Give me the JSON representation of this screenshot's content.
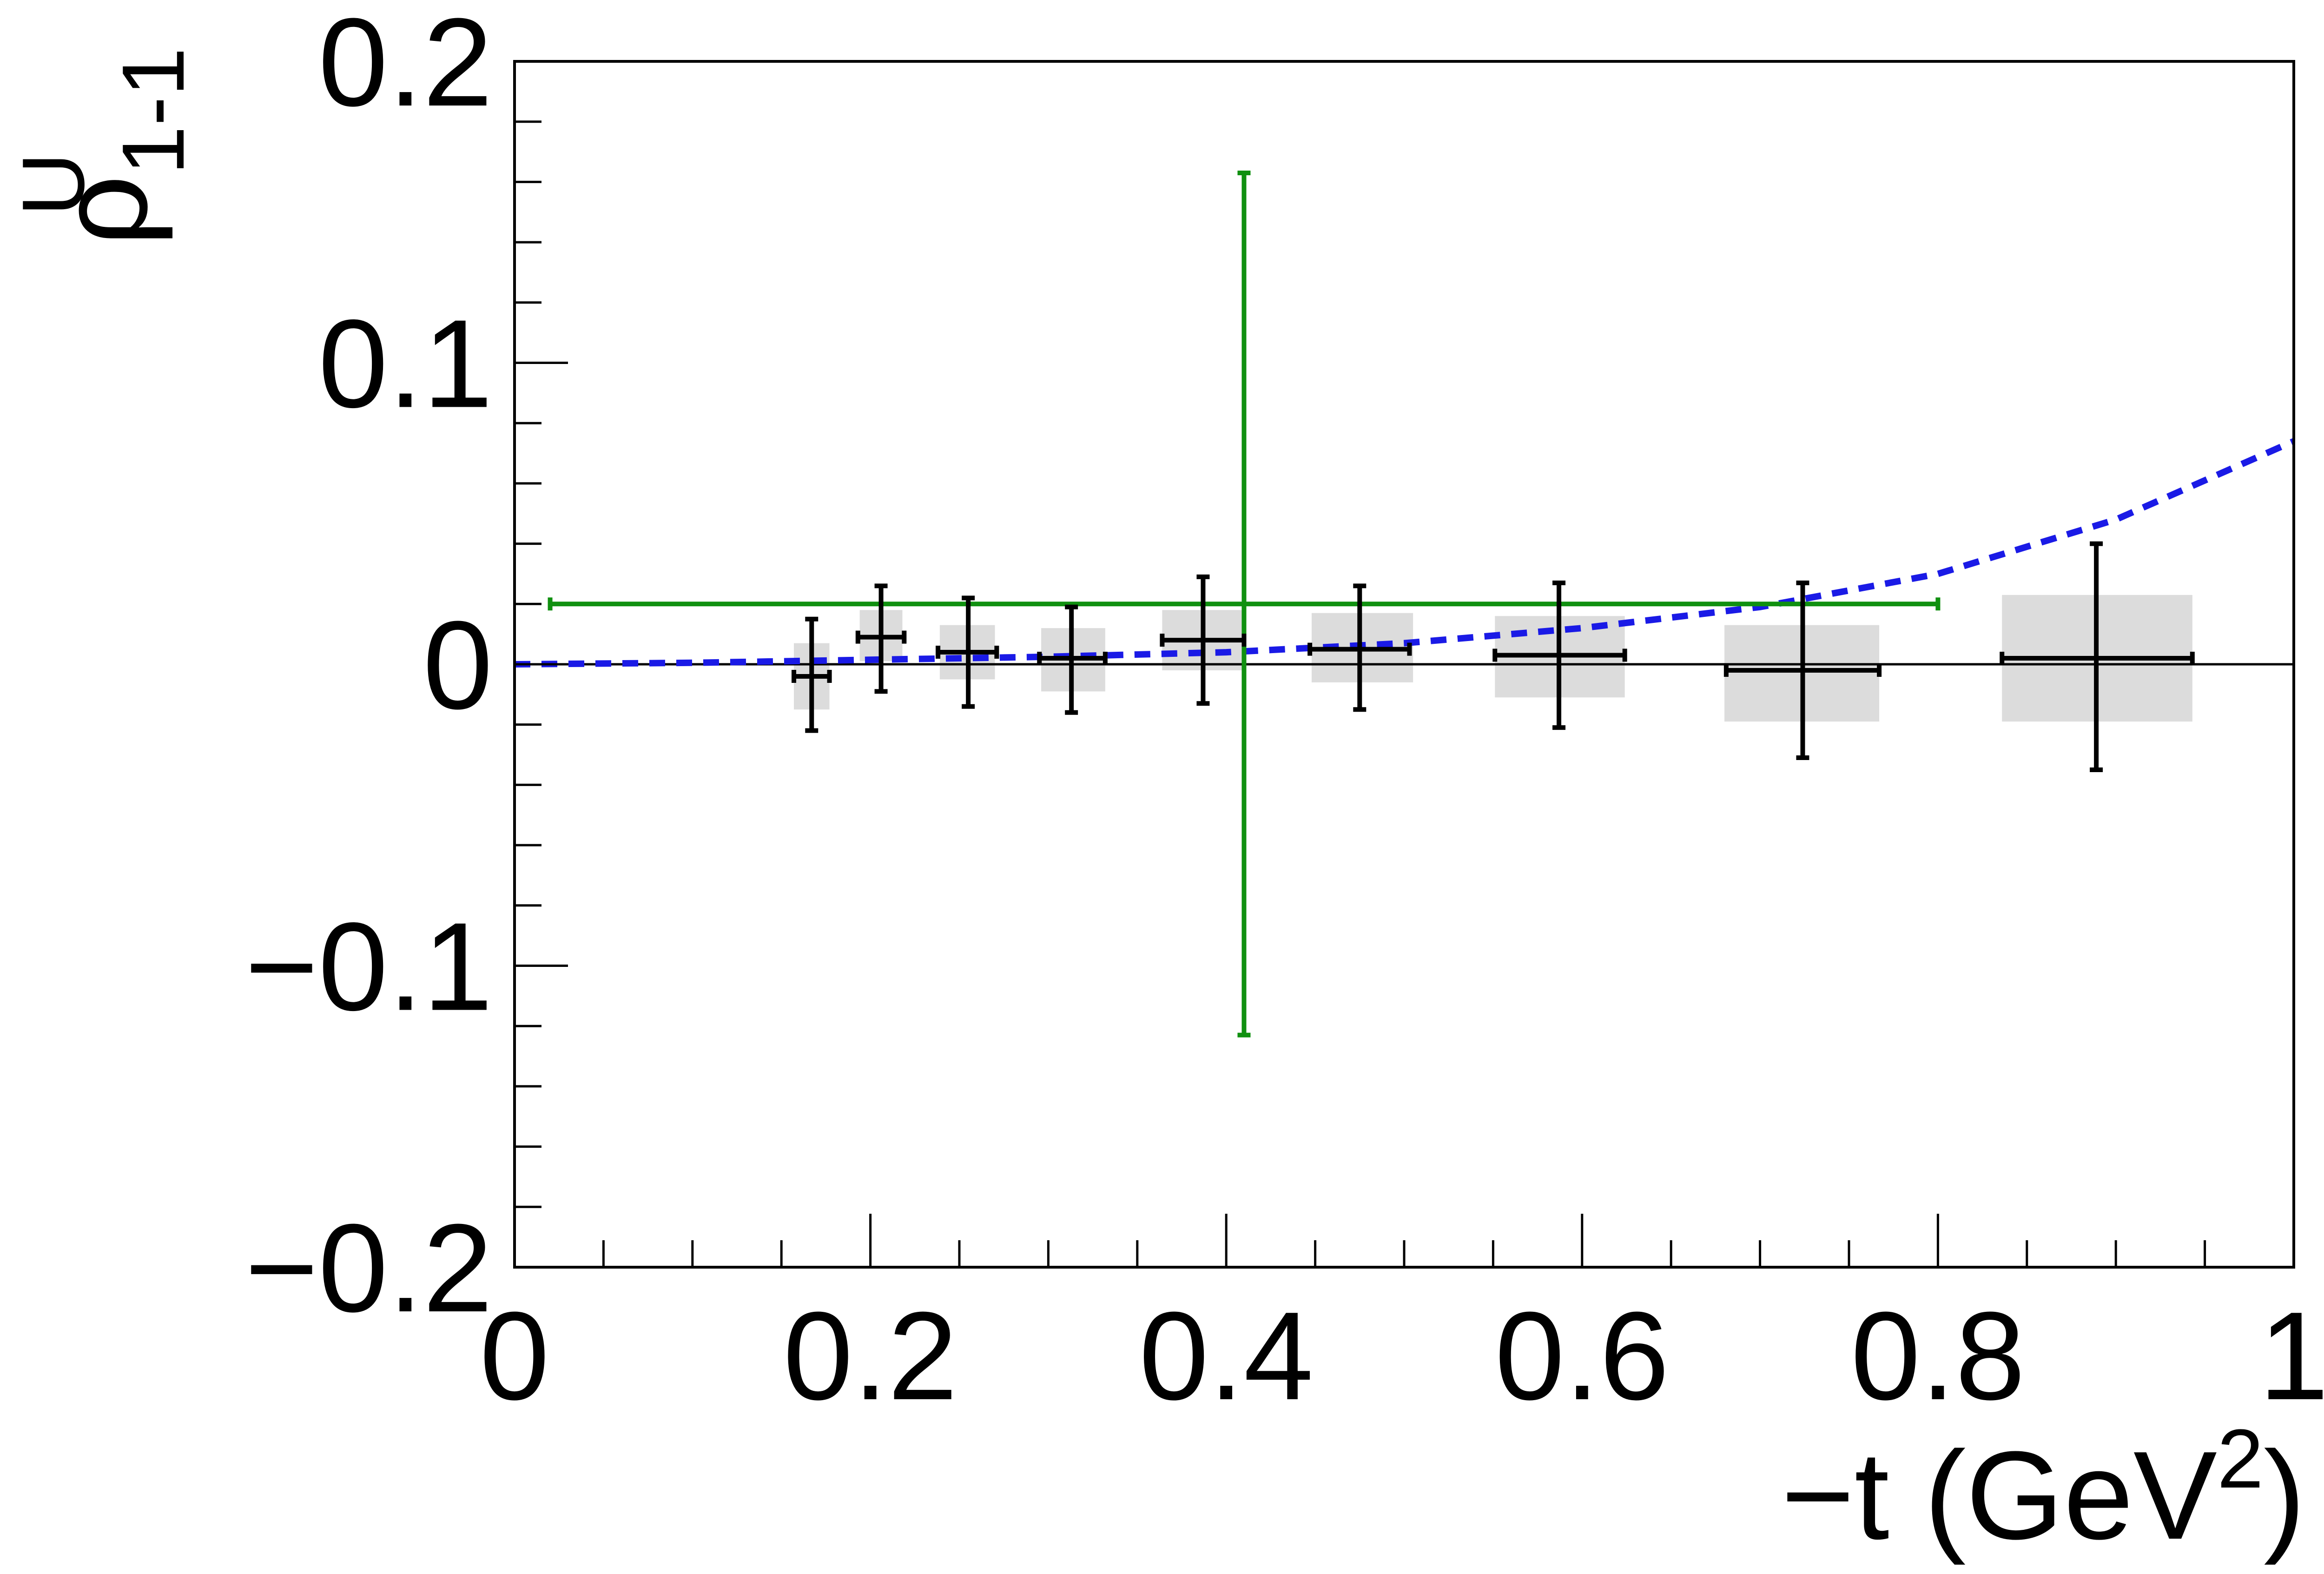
{
  "chart_data": {
    "type": "scatter",
    "xlabel": "−t (GeV",
    "xlabel_sup": "2",
    "xlabel_close": ")",
    "ylabel": "ρ",
    "ylabel_sup": "U",
    "ylabel_sub": "1-1",
    "xlim": [
      0,
      1
    ],
    "ylim": [
      -0.2,
      0.2
    ],
    "x_ticks": [
      {
        "v": 0,
        "label": "0"
      },
      {
        "v": 0.2,
        "label": "0.2"
      },
      {
        "v": 0.4,
        "label": "0.4"
      },
      {
        "v": 0.6,
        "label": "0.6"
      },
      {
        "v": 0.8,
        "label": "0.8"
      },
      {
        "v": 1,
        "label": "1"
      }
    ],
    "y_ticks": [
      {
        "v": 0.2,
        "label": "0.2"
      },
      {
        "v": 0.1,
        "label": "0.1"
      },
      {
        "v": 0,
        "label": "0"
      },
      {
        "v": -0.1,
        "label": "−0.1"
      },
      {
        "v": -0.2,
        "label": "−0.2"
      }
    ],
    "zero_line": true,
    "series": [
      {
        "kind": "points",
        "color": "#000000",
        "points": [
          {
            "x": 0.167,
            "y": -0.004,
            "xlo": 0.157,
            "xhi": 0.177,
            "ylo": -0.022,
            "yhi": 0.015,
            "bx0": 0.157,
            "bx1": 0.177,
            "by0": -0.015,
            "by1": 0.007
          },
          {
            "x": 0.206,
            "y": 0.009,
            "xlo": 0.193,
            "xhi": 0.219,
            "ylo": -0.009,
            "yhi": 0.026,
            "bx0": 0.194,
            "bx1": 0.218,
            "by0": 0.001,
            "by1": 0.018
          },
          {
            "x": 0.255,
            "y": 0.004,
            "xlo": 0.238,
            "xhi": 0.271,
            "ylo": -0.014,
            "yhi": 0.022,
            "bx0": 0.239,
            "bx1": 0.27,
            "by0": -0.005,
            "by1": 0.013
          },
          {
            "x": 0.313,
            "y": 0.002,
            "xlo": 0.295,
            "xhi": 0.332,
            "ylo": -0.016,
            "yhi": 0.019,
            "bx0": 0.296,
            "bx1": 0.332,
            "by0": -0.009,
            "by1": 0.012
          },
          {
            "x": 0.387,
            "y": 0.008,
            "xlo": 0.364,
            "xhi": 0.41,
            "ylo": -0.013,
            "yhi": 0.029,
            "bx0": 0.364,
            "bx1": 0.41,
            "by0": -0.002,
            "by1": 0.018
          },
          {
            "x": 0.475,
            "y": 0.005,
            "xlo": 0.447,
            "xhi": 0.503,
            "ylo": -0.015,
            "yhi": 0.026,
            "bx0": 0.448,
            "bx1": 0.505,
            "by0": -0.006,
            "by1": 0.017
          },
          {
            "x": 0.587,
            "y": 0.003,
            "xlo": 0.551,
            "xhi": 0.624,
            "ylo": -0.021,
            "yhi": 0.027,
            "bx0": 0.551,
            "bx1": 0.624,
            "by0": -0.011,
            "by1": 0.016
          },
          {
            "x": 0.724,
            "y": -0.002,
            "xlo": 0.681,
            "xhi": 0.767,
            "ylo": -0.031,
            "yhi": 0.027,
            "bx0": 0.68,
            "bx1": 0.767,
            "by0": -0.019,
            "by1": 0.013
          },
          {
            "x": 0.889,
            "y": 0.002,
            "xlo": 0.836,
            "xhi": 0.943,
            "ylo": -0.035,
            "yhi": 0.04,
            "bx0": 0.836,
            "bx1": 0.943,
            "by0": -0.019,
            "by1": 0.023
          }
        ]
      },
      {
        "kind": "point",
        "color": "#109010",
        "points": [
          {
            "x": 0.41,
            "y": 0.02,
            "xlo": 0.02,
            "xhi": 0.8,
            "ylo": -0.123,
            "yhi": 0.163
          }
        ]
      },
      {
        "kind": "dashed-curve",
        "color": "#1a1ae6",
        "points": [
          {
            "x": 0.0,
            "y": 0.0
          },
          {
            "x": 0.1,
            "y": 0.0005
          },
          {
            "x": 0.2,
            "y": 0.0015
          },
          {
            "x": 0.3,
            "y": 0.0025
          },
          {
            "x": 0.4,
            "y": 0.004
          },
          {
            "x": 0.5,
            "y": 0.007
          },
          {
            "x": 0.6,
            "y": 0.012
          },
          {
            "x": 0.7,
            "y": 0.019
          },
          {
            "x": 0.8,
            "y": 0.03
          },
          {
            "x": 0.9,
            "y": 0.048
          },
          {
            "x": 1.0,
            "y": 0.074
          }
        ]
      }
    ]
  }
}
